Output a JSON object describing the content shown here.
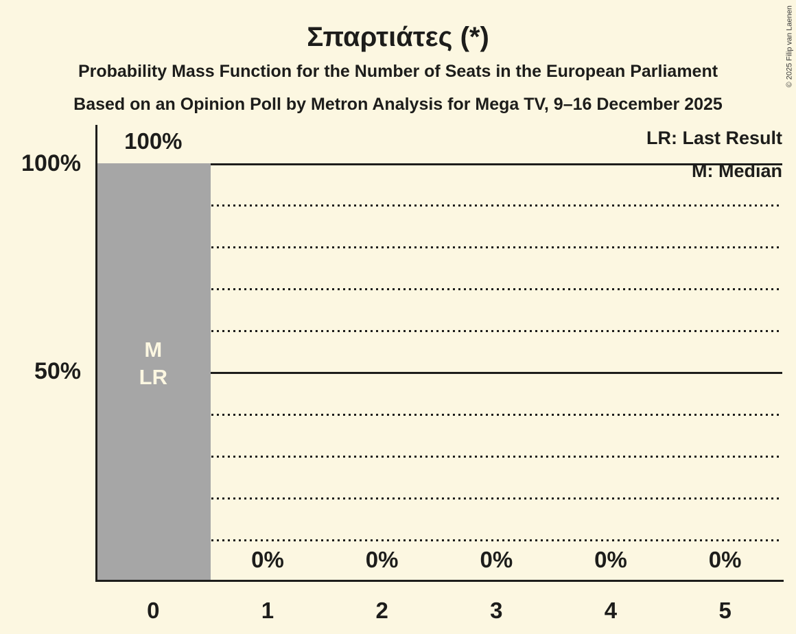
{
  "title": "Σπαρτιάτες (*)",
  "subtitles": [
    "Probability Mass Function for the Number of Seats in the European Parliament",
    "Based on an Opinion Poll by Metron Analysis for Mega TV, 9–16 December 2025"
  ],
  "copyright": "© 2025 Filip van Laenen",
  "legend": {
    "lr_label": "LR: Last Result",
    "m_label": "M: Median"
  },
  "colors": {
    "background": "#FCF7E1",
    "bar": "#A6A6A6",
    "text": "#1D1D1B",
    "bar_inner_label": "#FCF7E1"
  },
  "chart_data": {
    "type": "bar",
    "title": "Σπαρτιάτες (*)",
    "categories": [
      "0",
      "1",
      "2",
      "3",
      "4",
      "5"
    ],
    "values": [
      100,
      0,
      0,
      0,
      0,
      0
    ],
    "value_labels": [
      "100%",
      "0%",
      "0%",
      "0%",
      "0%",
      "0%"
    ],
    "bar_annotations": [
      [
        "M",
        "LR"
      ],
      [],
      [],
      [],
      [],
      []
    ],
    "xlabel": "",
    "ylabel": "",
    "ylim": [
      0,
      100
    ],
    "ytick_labels": [
      {
        "value": 100,
        "text": "100%"
      },
      {
        "value": 50,
        "text": "50%"
      }
    ],
    "solid_gridlines": [
      100,
      50
    ],
    "dotted_gridlines": [
      90,
      80,
      70,
      60,
      40,
      30,
      20,
      10
    ],
    "grid": true,
    "legend_position": "top-right",
    "median_category": "0",
    "last_result_category": "0"
  }
}
